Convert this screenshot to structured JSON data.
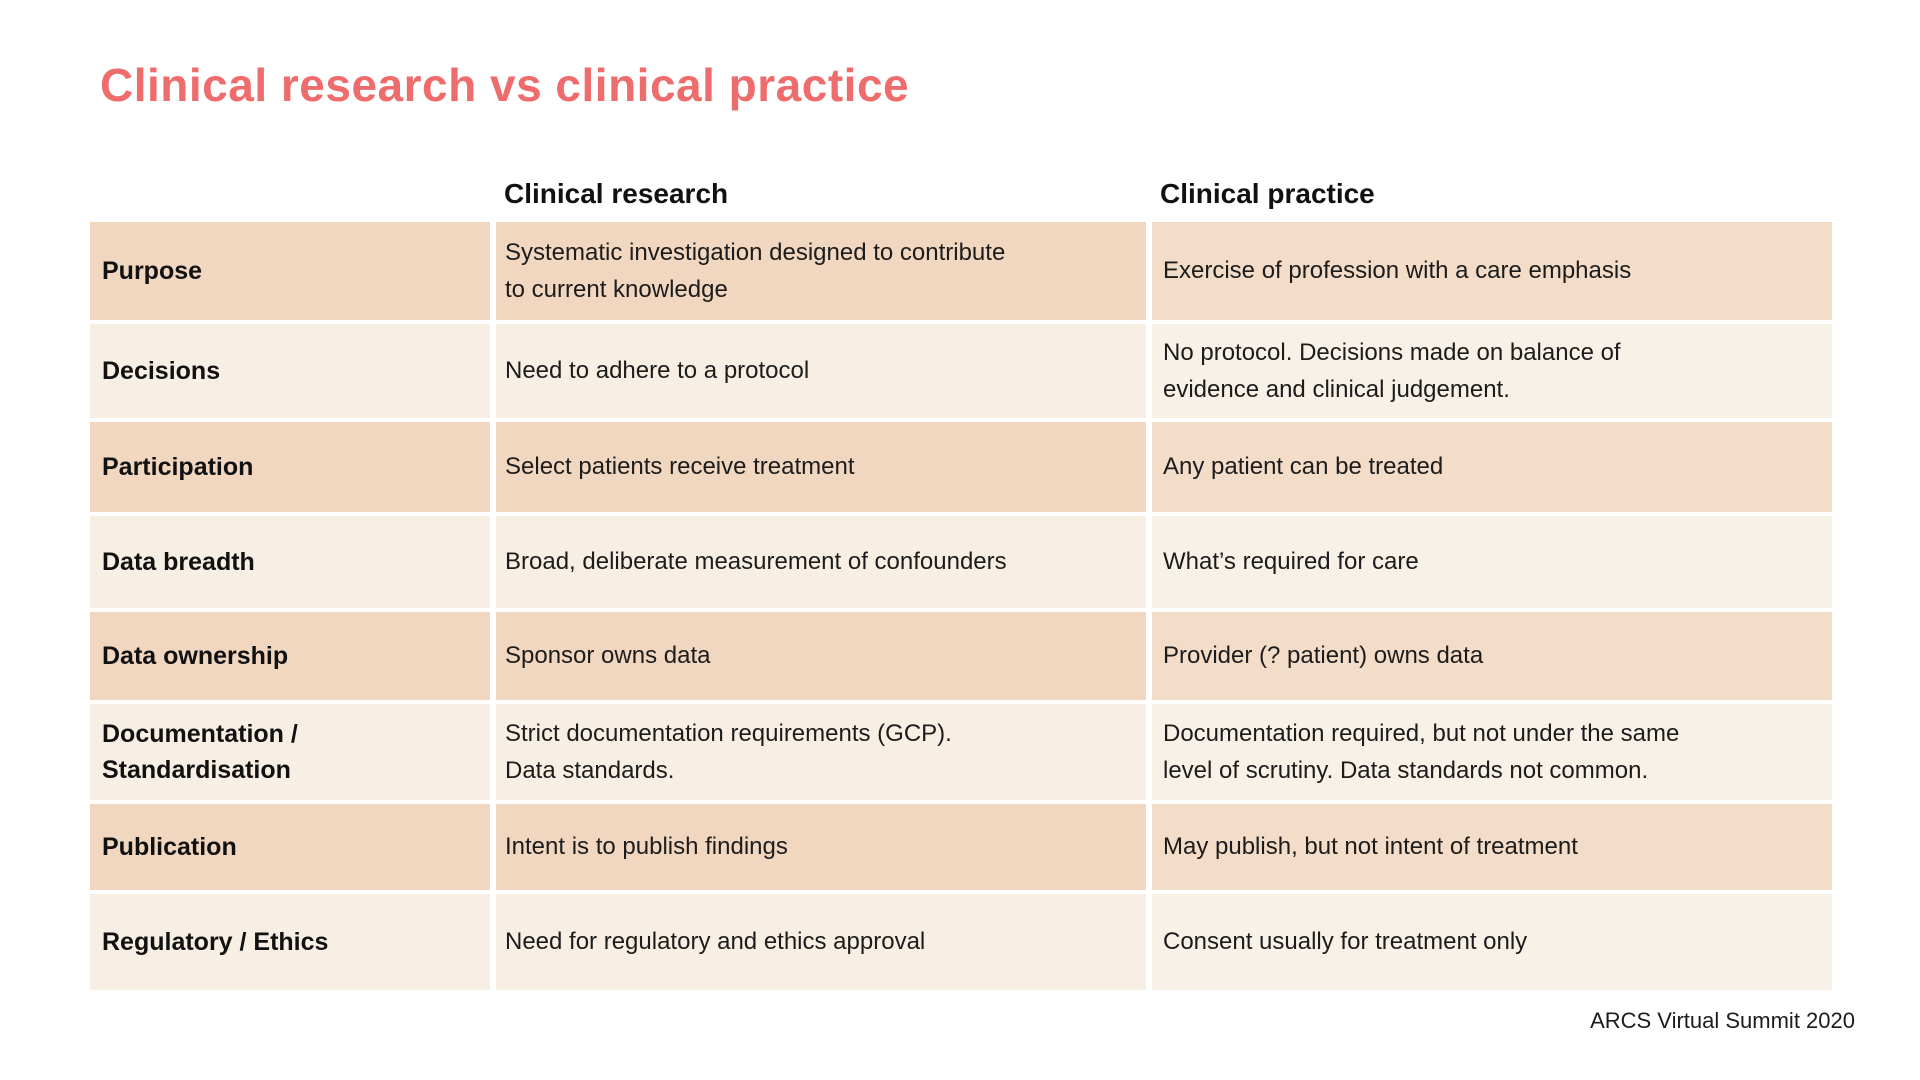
{
  "title": "Clinical research vs clinical practice",
  "table": {
    "column_headers": [
      "Clinical research",
      "Clinical practice"
    ],
    "rows": [
      {
        "label": "Purpose",
        "research": "Systematic investigation designed to contribute\nto current knowledge",
        "practice": "Exercise of profession with a care emphasis"
      },
      {
        "label": "Decisions",
        "research": "Need to adhere to a protocol",
        "practice": "No protocol. Decisions made on balance of\nevidence and clinical judgement."
      },
      {
        "label": "Participation",
        "research": "Select patients receive treatment",
        "practice": "Any patient can be treated"
      },
      {
        "label": "Data breadth",
        "research": "Broad, deliberate measurement of confounders",
        "practice": "What’s required for care"
      },
      {
        "label": "Data ownership",
        "research": "Sponsor owns data",
        "practice": "Provider (? patient) owns data"
      },
      {
        "label": "Documentation  /\nStandardisation",
        "research": "Strict documentation requirements (GCP).\nData standards.",
        "practice": "Documentation required, but not under the same\nlevel of scrutiny. Data standards not common."
      },
      {
        "label": "Publication",
        "research": "Intent is to publish findings",
        "practice": "May publish, but not intent of treatment"
      },
      {
        "label": "Regulatory / Ethics",
        "research": "Need for regulatory and ethics approval",
        "practice": "Consent usually for treatment only"
      }
    ]
  },
  "footer": "ARCS Virtual Summit 2020",
  "colors": {
    "title_accent": "#ee6c6c",
    "row_dark": "#f1d7c0",
    "row_dark_right": "#f3dcc8",
    "row_light": "#f7efe3",
    "row_light_right": "#f8f1e7",
    "text": "#1c1c1c"
  }
}
